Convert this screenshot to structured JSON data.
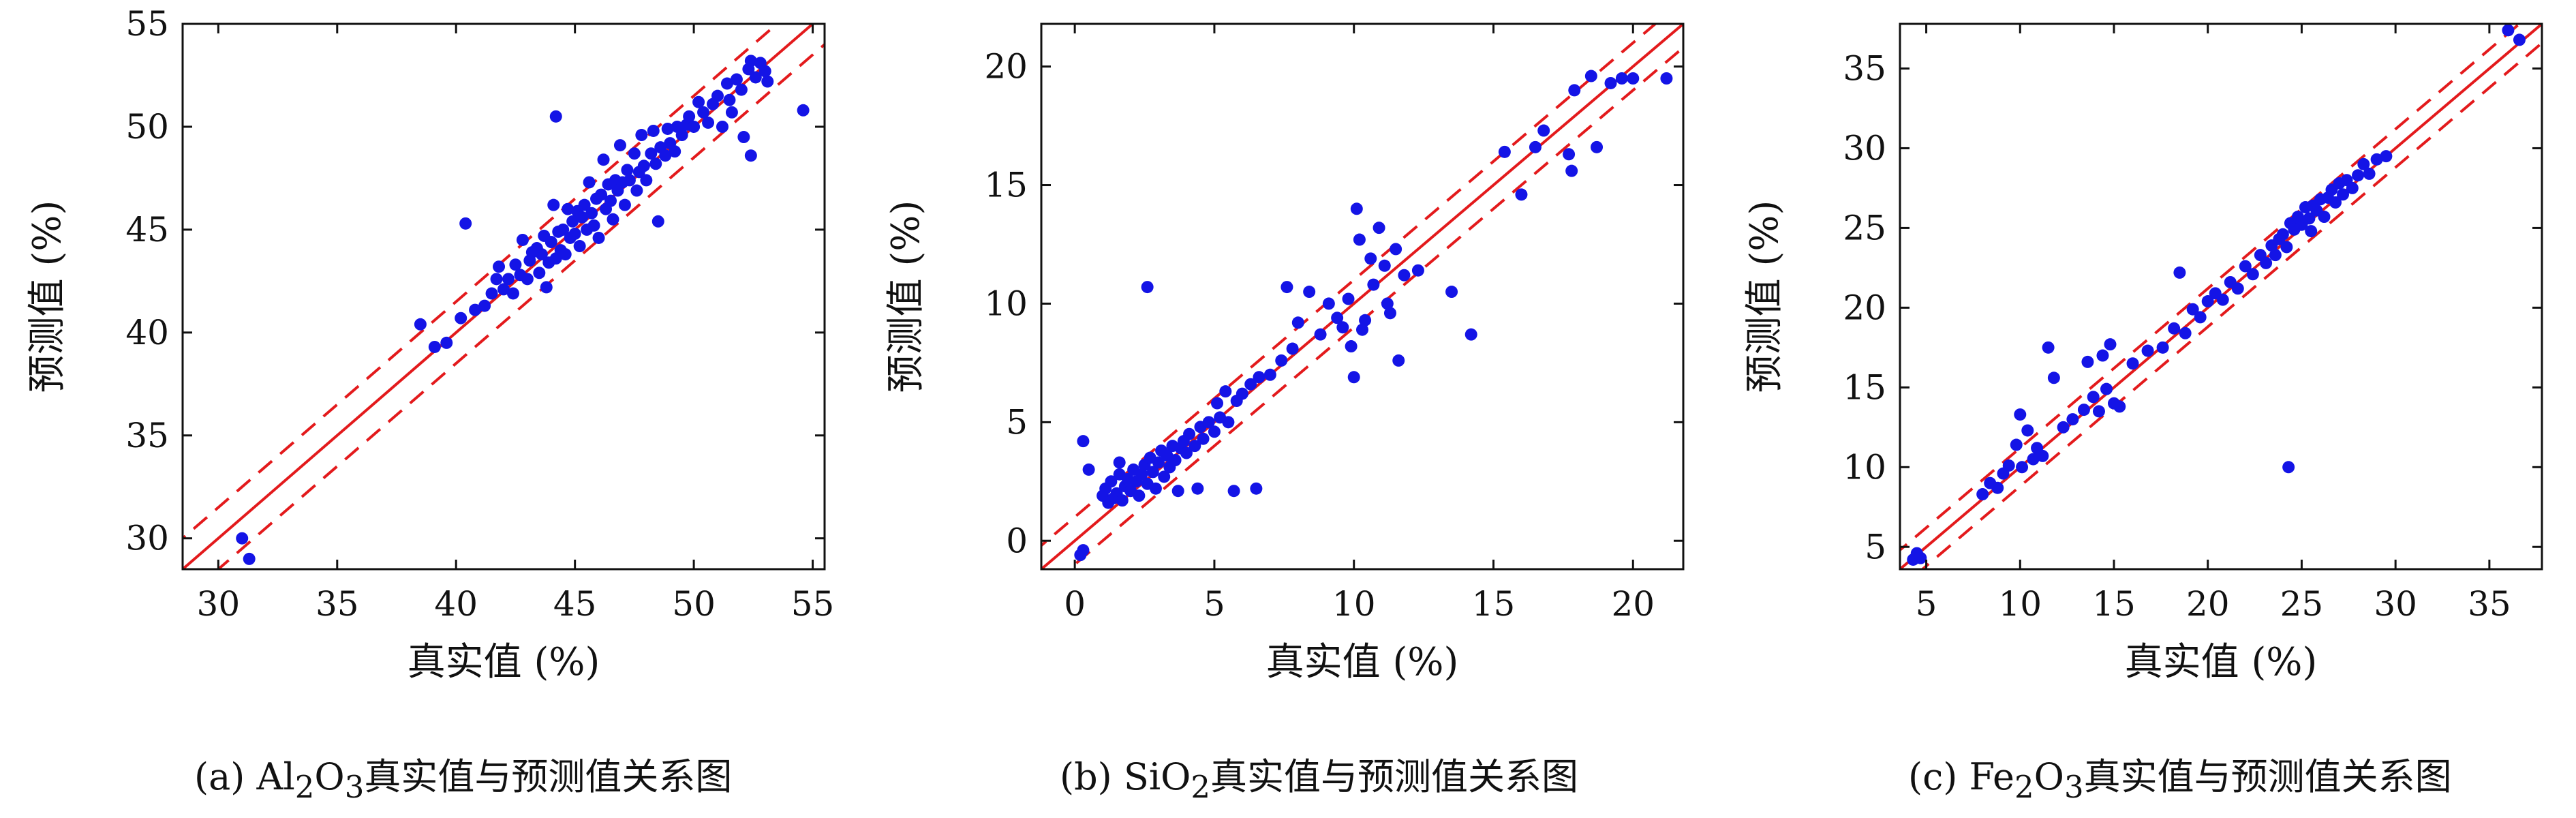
{
  "figure": {
    "captions": [
      {
        "prefix": "(a) Al",
        "sub1": "2",
        "mid": "O",
        "sub2": "3",
        "rest": "真实值与预测值关系图"
      },
      {
        "prefix": "(b) SiO",
        "sub1": "2",
        "mid": "",
        "sub2": "",
        "rest": "真实值与预测值关系图"
      },
      {
        "prefix": "(c) Fe",
        "sub1": "2",
        "mid": "O",
        "sub2": "3",
        "rest": "真实值与预测值关系图"
      }
    ]
  },
  "colors": {
    "points": "#1414e6",
    "line": "#e31a1c",
    "axis": "#111111"
  },
  "chart_data": [
    {
      "type": "scatter",
      "xlabel": "真实值 (%)",
      "ylabel": "预测值 (%)",
      "xlim": [
        28.5,
        55.5
      ],
      "ylim": [
        28.5,
        55
      ],
      "xticks": [
        30,
        35,
        40,
        45,
        50,
        55
      ],
      "yticks": [
        30,
        35,
        40,
        45,
        50,
        55
      ],
      "band": 1.5,
      "points": [
        [
          31.0,
          30.0
        ],
        [
          31.3,
          29.0
        ],
        [
          38.5,
          40.4
        ],
        [
          39.1,
          39.3
        ],
        [
          39.6,
          39.5
        ],
        [
          40.2,
          40.7
        ],
        [
          40.4,
          45.3
        ],
        [
          40.8,
          41.1
        ],
        [
          41.2,
          41.3
        ],
        [
          41.5,
          41.9
        ],
        [
          41.7,
          42.6
        ],
        [
          41.8,
          43.2
        ],
        [
          42.0,
          42.1
        ],
        [
          42.2,
          42.6
        ],
        [
          42.4,
          41.9
        ],
        [
          42.5,
          43.3
        ],
        [
          42.7,
          42.8
        ],
        [
          42.8,
          44.5
        ],
        [
          43.0,
          42.6
        ],
        [
          43.1,
          43.5
        ],
        [
          43.2,
          43.9
        ],
        [
          43.4,
          44.1
        ],
        [
          43.5,
          42.9
        ],
        [
          43.6,
          43.8
        ],
        [
          43.7,
          44.7
        ],
        [
          43.8,
          42.2
        ],
        [
          43.9,
          43.4
        ],
        [
          44.0,
          44.4
        ],
        [
          44.1,
          46.2
        ],
        [
          44.2,
          43.6
        ],
        [
          44.2,
          50.5
        ],
        [
          44.3,
          44.9
        ],
        [
          44.4,
          44.0
        ],
        [
          44.5,
          45.0
        ],
        [
          44.6,
          43.8
        ],
        [
          44.7,
          46.0
        ],
        [
          44.8,
          44.6
        ],
        [
          44.9,
          45.4
        ],
        [
          45.0,
          44.8
        ],
        [
          45.1,
          45.9
        ],
        [
          45.2,
          44.2
        ],
        [
          45.3,
          45.6
        ],
        [
          45.4,
          46.2
        ],
        [
          45.5,
          45.0
        ],
        [
          45.6,
          47.3
        ],
        [
          45.7,
          45.8
        ],
        [
          45.8,
          45.2
        ],
        [
          45.9,
          46.5
        ],
        [
          46.0,
          44.6
        ],
        [
          46.1,
          46.7
        ],
        [
          46.2,
          48.4
        ],
        [
          46.3,
          46.0
        ],
        [
          46.4,
          47.2
        ],
        [
          46.5,
          46.4
        ],
        [
          46.6,
          45.5
        ],
        [
          46.7,
          47.4
        ],
        [
          46.8,
          46.9
        ],
        [
          46.9,
          49.1
        ],
        [
          47.0,
          47.3
        ],
        [
          47.1,
          46.2
        ],
        [
          47.2,
          47.9
        ],
        [
          47.3,
          47.4
        ],
        [
          47.5,
          48.7
        ],
        [
          47.6,
          46.9
        ],
        [
          47.7,
          47.8
        ],
        [
          47.8,
          49.6
        ],
        [
          47.9,
          48.1
        ],
        [
          48.0,
          47.4
        ],
        [
          48.2,
          48.7
        ],
        [
          48.3,
          49.8
        ],
        [
          48.4,
          48.2
        ],
        [
          48.5,
          45.4
        ],
        [
          48.6,
          49.0
        ],
        [
          48.8,
          48.6
        ],
        [
          48.9,
          49.9
        ],
        [
          49.0,
          49.2
        ],
        [
          49.2,
          48.8
        ],
        [
          49.3,
          50.0
        ],
        [
          49.5,
          49.6
        ],
        [
          49.7,
          50.1
        ],
        [
          49.8,
          50.5
        ],
        [
          50.0,
          50.0
        ],
        [
          50.2,
          51.2
        ],
        [
          50.4,
          50.7
        ],
        [
          50.6,
          50.2
        ],
        [
          50.8,
          51.1
        ],
        [
          51.0,
          51.5
        ],
        [
          51.2,
          50.0
        ],
        [
          51.4,
          52.1
        ],
        [
          51.5,
          51.3
        ],
        [
          51.6,
          50.7
        ],
        [
          51.8,
          52.3
        ],
        [
          52.0,
          51.8
        ],
        [
          52.1,
          49.5
        ],
        [
          52.3,
          52.8
        ],
        [
          52.4,
          53.2
        ],
        [
          52.4,
          48.6
        ],
        [
          52.6,
          52.4
        ],
        [
          52.8,
          53.1
        ],
        [
          53.0,
          52.7
        ],
        [
          53.1,
          52.2
        ],
        [
          54.6,
          50.8
        ]
      ]
    },
    {
      "type": "scatter",
      "xlabel": "真实值 (%)",
      "ylabel": "预测值 (%)",
      "xlim": [
        -1.2,
        21.8
      ],
      "ylim": [
        -1.2,
        21.8
      ],
      "xticks": [
        0,
        5,
        10,
        15,
        20
      ],
      "yticks": [
        0,
        5,
        10,
        15,
        20
      ],
      "band": 1.0,
      "points": [
        [
          0.2,
          -0.6
        ],
        [
          0.3,
          -0.4
        ],
        [
          0.3,
          4.2
        ],
        [
          0.5,
          3.0
        ],
        [
          1.0,
          1.9
        ],
        [
          1.1,
          2.2
        ],
        [
          1.2,
          1.6
        ],
        [
          1.3,
          2.5
        ],
        [
          1.4,
          1.8
        ],
        [
          1.5,
          2.0
        ],
        [
          1.6,
          2.8
        ],
        [
          1.6,
          3.3
        ],
        [
          1.7,
          1.7
        ],
        [
          1.8,
          2.3
        ],
        [
          1.9,
          2.6
        ],
        [
          2.0,
          2.1
        ],
        [
          2.1,
          3.0
        ],
        [
          2.2,
          2.5
        ],
        [
          2.3,
          1.9
        ],
        [
          2.4,
          2.8
        ],
        [
          2.5,
          3.2
        ],
        [
          2.6,
          2.4
        ],
        [
          2.6,
          10.7
        ],
        [
          2.7,
          3.5
        ],
        [
          2.8,
          2.9
        ],
        [
          2.9,
          2.2
        ],
        [
          3.0,
          3.3
        ],
        [
          3.1,
          3.8
        ],
        [
          3.2,
          2.7
        ],
        [
          3.3,
          3.6
        ],
        [
          3.4,
          3.1
        ],
        [
          3.5,
          4.0
        ],
        [
          3.6,
          3.4
        ],
        [
          3.7,
          2.1
        ],
        [
          3.8,
          3.9
        ],
        [
          3.9,
          4.2
        ],
        [
          4.0,
          3.7
        ],
        [
          4.1,
          4.5
        ],
        [
          4.3,
          4.0
        ],
        [
          4.4,
          2.2
        ],
        [
          4.5,
          4.8
        ],
        [
          4.6,
          4.3
        ],
        [
          4.8,
          5.0
        ],
        [
          5.0,
          4.6
        ],
        [
          5.1,
          5.8
        ],
        [
          5.2,
          5.2
        ],
        [
          5.4,
          6.3
        ],
        [
          5.5,
          5.0
        ],
        [
          5.7,
          2.1
        ],
        [
          5.8,
          5.9
        ],
        [
          6.0,
          6.2
        ],
        [
          6.3,
          6.6
        ],
        [
          6.5,
          2.2
        ],
        [
          6.6,
          6.9
        ],
        [
          7.0,
          7.0
        ],
        [
          7.4,
          7.6
        ],
        [
          7.6,
          10.7
        ],
        [
          7.8,
          8.1
        ],
        [
          8.0,
          9.2
        ],
        [
          8.4,
          10.5
        ],
        [
          8.8,
          8.7
        ],
        [
          9.1,
          10.0
        ],
        [
          9.4,
          9.4
        ],
        [
          9.6,
          9.0
        ],
        [
          9.8,
          10.2
        ],
        [
          9.9,
          8.2
        ],
        [
          10.0,
          6.9
        ],
        [
          10.1,
          14.0
        ],
        [
          10.2,
          12.7
        ],
        [
          10.3,
          8.9
        ],
        [
          10.4,
          9.3
        ],
        [
          10.6,
          11.9
        ],
        [
          10.7,
          10.8
        ],
        [
          10.9,
          13.2
        ],
        [
          11.1,
          11.6
        ],
        [
          11.2,
          10.0
        ],
        [
          11.3,
          9.6
        ],
        [
          11.5,
          12.3
        ],
        [
          11.6,
          7.6
        ],
        [
          11.8,
          11.2
        ],
        [
          12.3,
          11.4
        ],
        [
          13.5,
          10.5
        ],
        [
          14.2,
          8.7
        ],
        [
          15.4,
          16.4
        ],
        [
          16.0,
          14.6
        ],
        [
          16.5,
          16.6
        ],
        [
          16.8,
          17.3
        ],
        [
          17.7,
          16.3
        ],
        [
          17.8,
          15.6
        ],
        [
          17.9,
          19.0
        ],
        [
          18.5,
          19.6
        ],
        [
          18.7,
          16.6
        ],
        [
          19.2,
          19.3
        ],
        [
          19.6,
          19.5
        ],
        [
          20.0,
          19.5
        ],
        [
          21.2,
          19.5
        ]
      ]
    },
    {
      "type": "scatter",
      "xlabel": "真实值 (%)",
      "ylabel": "预测值 (%)",
      "xlim": [
        3.6,
        37.8
      ],
      "ylim": [
        3.6,
        37.8
      ],
      "xticks": [
        5,
        10,
        15,
        20,
        25,
        30,
        35
      ],
      "yticks": [
        5,
        10,
        15,
        20,
        25,
        30,
        35
      ],
      "band": 1.2,
      "points": [
        [
          4.3,
          4.2
        ],
        [
          4.5,
          4.6
        ],
        [
          4.7,
          4.3
        ],
        [
          8.0,
          8.3
        ],
        [
          8.4,
          9.0
        ],
        [
          8.8,
          8.7
        ],
        [
          9.1,
          9.6
        ],
        [
          9.4,
          10.1
        ],
        [
          9.8,
          11.4
        ],
        [
          10.0,
          13.3
        ],
        [
          10.1,
          10.0
        ],
        [
          10.4,
          12.3
        ],
        [
          10.7,
          10.5
        ],
        [
          10.9,
          11.2
        ],
        [
          11.2,
          10.7
        ],
        [
          11.5,
          17.5
        ],
        [
          11.8,
          15.6
        ],
        [
          12.3,
          12.5
        ],
        [
          12.8,
          13.0
        ],
        [
          13.4,
          13.6
        ],
        [
          13.6,
          16.6
        ],
        [
          13.9,
          14.4
        ],
        [
          14.2,
          13.5
        ],
        [
          14.4,
          17.0
        ],
        [
          14.6,
          14.9
        ],
        [
          14.8,
          17.7
        ],
        [
          15.0,
          14.0
        ],
        [
          15.3,
          13.8
        ],
        [
          16.0,
          16.5
        ],
        [
          16.8,
          17.3
        ],
        [
          17.6,
          17.5
        ],
        [
          18.2,
          18.7
        ],
        [
          18.5,
          22.2
        ],
        [
          18.8,
          18.4
        ],
        [
          19.2,
          19.9
        ],
        [
          19.6,
          19.4
        ],
        [
          20.0,
          20.4
        ],
        [
          20.4,
          20.9
        ],
        [
          20.8,
          20.5
        ],
        [
          21.2,
          21.6
        ],
        [
          21.6,
          21.2
        ],
        [
          22.0,
          22.6
        ],
        [
          22.4,
          22.1
        ],
        [
          22.8,
          23.3
        ],
        [
          23.1,
          22.8
        ],
        [
          23.4,
          23.9
        ],
        [
          23.6,
          23.3
        ],
        [
          23.8,
          24.3
        ],
        [
          24.0,
          24.6
        ],
        [
          24.2,
          23.8
        ],
        [
          24.3,
          10.0
        ],
        [
          24.4,
          25.3
        ],
        [
          24.6,
          24.9
        ],
        [
          24.8,
          25.7
        ],
        [
          25.0,
          25.2
        ],
        [
          25.2,
          26.3
        ],
        [
          25.4,
          25.6
        ],
        [
          25.5,
          24.8
        ],
        [
          25.6,
          26.4
        ],
        [
          25.8,
          26.1
        ],
        [
          26.0,
          26.8
        ],
        [
          26.2,
          25.7
        ],
        [
          26.4,
          26.9
        ],
        [
          26.6,
          27.4
        ],
        [
          26.8,
          26.6
        ],
        [
          27.0,
          27.8
        ],
        [
          27.2,
          27.1
        ],
        [
          27.4,
          28.0
        ],
        [
          27.7,
          27.5
        ],
        [
          28.0,
          28.3
        ],
        [
          28.3,
          29.0
        ],
        [
          28.6,
          28.4
        ],
        [
          29.0,
          29.3
        ],
        [
          29.5,
          29.5
        ],
        [
          36.0,
          37.4
        ],
        [
          36.6,
          36.8
        ]
      ]
    }
  ]
}
